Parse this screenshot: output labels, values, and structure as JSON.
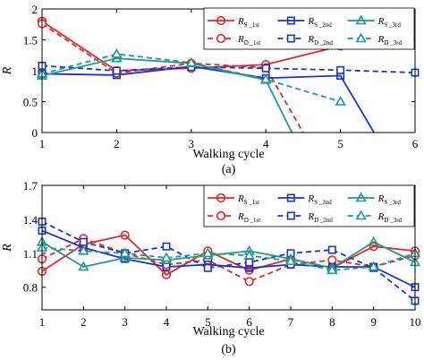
{
  "chart_data": [
    {
      "type": "line",
      "panel_label": "(a)",
      "xlabel": "Walking cycle",
      "ylabel": "R",
      "xlim": [
        1,
        6
      ],
      "ylim": [
        0,
        2
      ],
      "xticks": [
        "1",
        "2",
        "3",
        "4",
        "5",
        "6"
      ],
      "yticks": [
        "0",
        "0.5",
        "1",
        "1.5",
        "2"
      ],
      "legend_position": "top-right",
      "series": [
        {
          "name": "R_S_1st",
          "legend_main": "R",
          "legend_sub": "S _1st",
          "color": "#e0282a",
          "dash": "solid",
          "marker": "circle",
          "x": [
            1,
            2,
            3,
            4,
            5
          ],
          "y": [
            1.8,
            1.0,
            1.04,
            1.1,
            1.4
          ]
        },
        {
          "name": "R_D_1st",
          "legend_main": "R",
          "legend_sub": "D _1st",
          "color": "#e0282a",
          "dash": "dashed",
          "marker": "circle-open",
          "x": [
            1,
            2,
            3,
            4,
            4.5
          ],
          "y": [
            1.76,
            0.96,
            1.12,
            1.05,
            0
          ]
        },
        {
          "name": "R_S_2nd",
          "legend_main": "R",
          "legend_sub": "S _2nd",
          "color": "#1c33c8",
          "dash": "solid",
          "marker": "square",
          "x": [
            1,
            2,
            3,
            4,
            5,
            5.45
          ],
          "y": [
            0.95,
            0.93,
            1.07,
            0.88,
            0.92,
            0
          ]
        },
        {
          "name": "R_D_2nd",
          "legend_main": "R",
          "legend_sub": "D _2nd",
          "color": "#1c33c8",
          "dash": "dashed",
          "marker": "square-open",
          "x": [
            1,
            2,
            3,
            4,
            5,
            6
          ],
          "y": [
            1.08,
            1.0,
            1.06,
            1.04,
            1.01,
            0.97
          ]
        },
        {
          "name": "R_S_3rd",
          "legend_main": "R",
          "legend_sub": "S _3rd",
          "color": "#1e9a8c",
          "dash": "solid",
          "marker": "triangle",
          "x": [
            1,
            2,
            3,
            4,
            4.35
          ],
          "y": [
            0.92,
            1.2,
            1.12,
            0.85,
            0
          ]
        },
        {
          "name": "R_D_3rd",
          "legend_main": "R",
          "legend_sub": "D _3rd",
          "color": "#1e9a8c",
          "dash": "dashed",
          "marker": "triangle-open",
          "x": [
            1,
            2,
            3,
            4,
            5
          ],
          "y": [
            0.95,
            1.27,
            1.13,
            0.86,
            0.5
          ]
        }
      ]
    },
    {
      "type": "line",
      "panel_label": "(b)",
      "xlabel": "Walking cycle",
      "ylabel": "R",
      "xlim": [
        1,
        10
      ],
      "ylim": [
        0.6,
        1.7
      ],
      "xticks": [
        "1",
        "2",
        "3",
        "4",
        "5",
        "6",
        "7",
        "8",
        "9",
        "10"
      ],
      "yticks": [
        "0.8",
        "1.1",
        "1.4",
        "1.7"
      ],
      "legend_position": "top-right",
      "series": [
        {
          "name": "R_S_1st",
          "legend_main": "R",
          "legend_sub": "S _1st",
          "color": "#e0282a",
          "dash": "solid",
          "marker": "circle",
          "x": [
            1,
            2,
            3,
            4,
            5,
            6,
            7,
            8,
            9,
            10
          ],
          "y": [
            0.94,
            1.18,
            1.26,
            0.91,
            1.12,
            0.95,
            1.05,
            0.97,
            1.16,
            1.12
          ]
        },
        {
          "name": "R_D_1st",
          "legend_main": "R",
          "legend_sub": "D _1st",
          "color": "#e0282a",
          "dash": "dashed",
          "marker": "circle-open",
          "x": [
            1,
            2,
            3,
            4,
            5,
            6,
            7,
            8,
            9,
            10
          ],
          "y": [
            1.05,
            1.23,
            1.1,
            1.0,
            1.04,
            0.85,
            1.0,
            1.04,
            0.98,
            1.08
          ]
        },
        {
          "name": "R_S_2nd",
          "legend_main": "R",
          "legend_sub": "S _2nd",
          "color": "#1c33c8",
          "dash": "solid",
          "marker": "square",
          "x": [
            1,
            2,
            3,
            4,
            5,
            6,
            7,
            8,
            9,
            10
          ],
          "y": [
            1.3,
            1.15,
            1.05,
            0.98,
            1.0,
            0.97,
            1.0,
            0.98,
            0.98,
            0.8
          ]
        },
        {
          "name": "R_D_2nd",
          "legend_main": "R",
          "legend_sub": "D _2nd",
          "color": "#1c33c8",
          "dash": "dashed",
          "marker": "square-open",
          "x": [
            1,
            2,
            3,
            4,
            5,
            6,
            7,
            8,
            9,
            10
          ],
          "y": [
            1.38,
            1.2,
            1.1,
            1.16,
            0.97,
            1.02,
            1.1,
            1.13,
            0.97,
            0.68
          ]
        },
        {
          "name": "R_S_3rd",
          "legend_main": "R",
          "legend_sub": "S _3rd",
          "color": "#1e9a8c",
          "dash": "solid",
          "marker": "triangle",
          "x": [
            1,
            2,
            3,
            4,
            5,
            6,
            7,
            8,
            9,
            10
          ],
          "y": [
            1.2,
            0.98,
            1.06,
            1.04,
            1.08,
            1.12,
            1.05,
            0.97,
            1.2,
            1.02
          ]
        },
        {
          "name": "R_D_3rd",
          "legend_main": "R",
          "legend_sub": "D _3rd",
          "color": "#1e9a8c",
          "dash": "dashed",
          "marker": "triangle-open",
          "x": [
            1,
            2,
            3,
            4,
            5,
            6,
            7,
            8,
            9,
            10
          ],
          "y": [
            1.15,
            1.12,
            1.1,
            1.06,
            1.1,
            1.08,
            1.03,
            0.95,
            0.98,
            1.1
          ]
        }
      ]
    }
  ]
}
